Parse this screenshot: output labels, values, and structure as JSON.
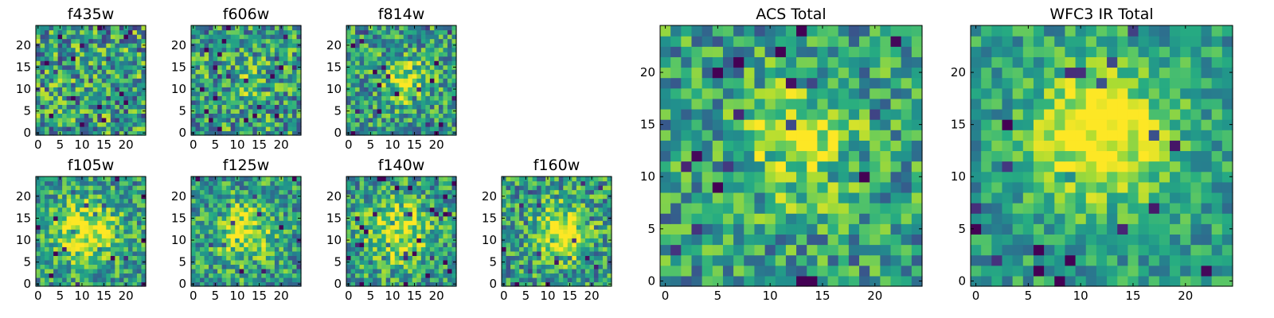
{
  "chart_data": {
    "type": "heatmap",
    "colormap": "viridis",
    "grid": false,
    "legend": "none",
    "panels": [
      {
        "title": "f435w",
        "xlim": [
          0,
          24
        ],
        "ylim": [
          0,
          24
        ],
        "xticks": [
          0,
          5,
          10,
          15,
          20
        ],
        "yticks": [
          0,
          5,
          10,
          15,
          20
        ],
        "blob": {
          "cx": 12,
          "cy": 12,
          "sigma": 5,
          "amp": 0.0
        },
        "noise": 0.55,
        "seed": 11
      },
      {
        "title": "f606w",
        "xlim": [
          0,
          24
        ],
        "ylim": [
          0,
          24
        ],
        "xticks": [
          0,
          5,
          10,
          15,
          20
        ],
        "yticks": [
          0,
          5,
          10,
          15,
          20
        ],
        "blob": {
          "cx": 12,
          "cy": 12,
          "sigma": 5,
          "amp": 0.1
        },
        "noise": 0.5,
        "seed": 23
      },
      {
        "title": "f814w",
        "xlim": [
          0,
          24
        ],
        "ylim": [
          0,
          24
        ],
        "xticks": [
          0,
          5,
          10,
          15,
          20
        ],
        "yticks": [
          0,
          5,
          10,
          15,
          20
        ],
        "blob": {
          "cx": 13,
          "cy": 12,
          "sigma": 3.5,
          "amp": 0.35
        },
        "noise": 0.45,
        "seed": 37
      },
      {
        "title": "f105w",
        "xlim": [
          0,
          24
        ],
        "ylim": [
          0,
          24
        ],
        "xticks": [
          0,
          5,
          10,
          15,
          20
        ],
        "yticks": [
          0,
          5,
          10,
          15,
          20
        ],
        "blob": {
          "cx": 11,
          "cy": 12,
          "sigma": 5,
          "amp": 0.45
        },
        "noise": 0.4,
        "seed": 41
      },
      {
        "title": "f125w",
        "xlim": [
          0,
          24
        ],
        "ylim": [
          0,
          24
        ],
        "xticks": [
          0,
          5,
          10,
          15,
          20
        ],
        "yticks": [
          0,
          5,
          10,
          15,
          20
        ],
        "blob": {
          "cx": 12,
          "cy": 12,
          "sigma": 4.5,
          "amp": 0.4
        },
        "noise": 0.42,
        "seed": 53
      },
      {
        "title": "f140w",
        "xlim": [
          0,
          24
        ],
        "ylim": [
          0,
          24
        ],
        "xticks": [
          0,
          5,
          10,
          15,
          20
        ],
        "yticks": [
          0,
          5,
          10,
          15,
          20
        ],
        "blob": {
          "cx": 11,
          "cy": 12,
          "sigma": 5,
          "amp": 0.4
        },
        "noise": 0.42,
        "seed": 67
      },
      {
        "title": "f160w",
        "xlim": [
          0,
          24
        ],
        "ylim": [
          0,
          24
        ],
        "xticks": [
          0,
          5,
          10,
          15,
          20
        ],
        "yticks": [
          0,
          5,
          10,
          15,
          20
        ],
        "blob": {
          "cx": 13,
          "cy": 12,
          "sigma": 4,
          "amp": 0.5
        },
        "noise": 0.45,
        "seed": 79
      },
      {
        "title": "ACS Total",
        "xlim": [
          0,
          24
        ],
        "ylim": [
          0,
          24
        ],
        "xticks": [
          0,
          5,
          10,
          15,
          20
        ],
        "yticks": [
          0,
          5,
          10,
          15,
          20
        ],
        "blob": {
          "cx": 13,
          "cy": 13,
          "sigma": 4,
          "amp": 0.35
        },
        "noise": 0.42,
        "seed": 97
      },
      {
        "title": "WFC3 IR Total",
        "xlim": [
          0,
          24
        ],
        "ylim": [
          0,
          24
        ],
        "xticks": [
          0,
          5,
          10,
          15,
          20
        ],
        "yticks": [
          0,
          5,
          10,
          15,
          20
        ],
        "blob": {
          "cx": 12,
          "cy": 14,
          "sigma": 4.5,
          "amp": 0.55
        },
        "noise": 0.3,
        "seed": 113
      }
    ]
  }
}
